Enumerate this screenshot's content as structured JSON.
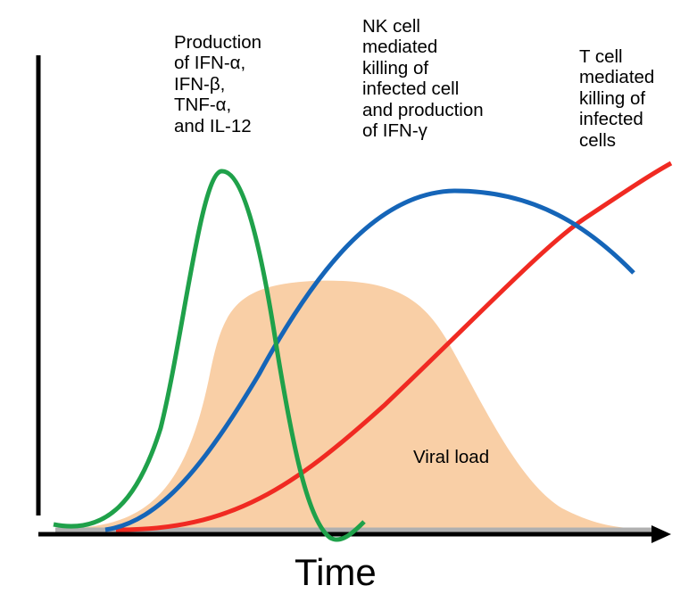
{
  "diagram": {
    "x_axis_label": "Time",
    "viral_load_label": "Viral load",
    "labels": {
      "ifn": [
        "Production",
        "of IFN-α,",
        "IFN-β,",
        "TNF-α,",
        "and IL-12"
      ],
      "nk": [
        "NK cell",
        "mediated",
        "killing of",
        "infected cell",
        "and production",
        "of IFN-γ"
      ],
      "t": [
        "T cell",
        "mediated",
        "killing of",
        "infected",
        "cells"
      ]
    },
    "colors": {
      "viral_load": "#f9cfa6",
      "innate_cytokines": "#1fa14a",
      "nk_cells": "#1565b8",
      "t_cells": "#f02a22",
      "axes": "#000000"
    }
  }
}
